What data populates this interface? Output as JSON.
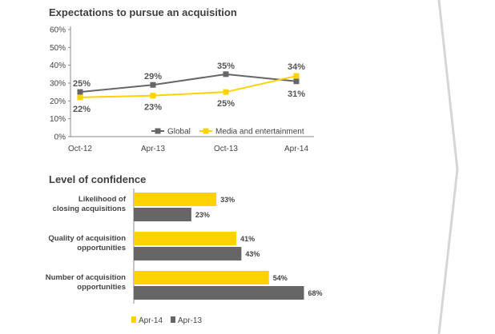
{
  "chart_data": [
    {
      "type": "line",
      "title": "Expectations to pursue an acquisition",
      "x": [
        "Oct-12",
        "Apr-13",
        "Oct-13",
        "Apr-14"
      ],
      "ylim": [
        0,
        60
      ],
      "yticks": [
        "0%",
        "10%",
        "20%",
        "30%",
        "40%",
        "50%",
        "60%"
      ],
      "grid": false,
      "legend_position": "bottom-right",
      "series": [
        {
          "name": "Global",
          "values": [
            25,
            29,
            35,
            31
          ],
          "labels": [
            "25%",
            "29%",
            "35%",
            "31%"
          ],
          "color": "#666666"
        },
        {
          "name": "Media and entertainment",
          "values": [
            22,
            23,
            25,
            34
          ],
          "labels": [
            "22%",
            "23%",
            "25%",
            "34%"
          ],
          "color": "#ffd200"
        }
      ]
    },
    {
      "type": "bar",
      "orientation": "horizontal",
      "title": "Level of confidence",
      "categories": [
        [
          "Likelihood of",
          "closing acquisitions"
        ],
        [
          "Quality of acquisition",
          "opportunities"
        ],
        [
          "Number of acquisition",
          "opportunities"
        ]
      ],
      "legend_position": "bottom-left",
      "series": [
        {
          "name": "Apr-14",
          "values": [
            33,
            41,
            54
          ],
          "labels": [
            "33%",
            "41%",
            "54%"
          ],
          "color": "#ffd200"
        },
        {
          "name": "Apr-13",
          "values": [
            23,
            43,
            68
          ],
          "labels": [
            "23%",
            "43%",
            "68%"
          ],
          "color": "#666666"
        }
      ]
    }
  ],
  "decor": {
    "divider_color": "#d6d6d6"
  }
}
